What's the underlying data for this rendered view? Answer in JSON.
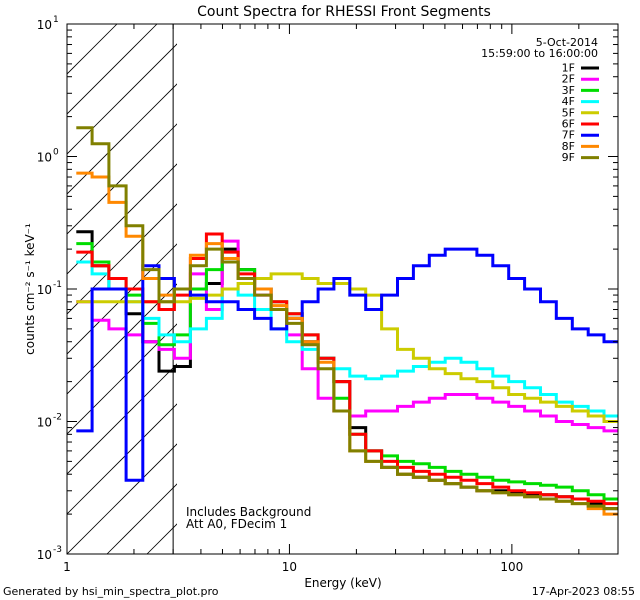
{
  "chart_data": {
    "type": "line",
    "title": "Count Spectra for RHESSI Front Segments",
    "xlabel": "Energy (keV)",
    "ylabel": "counts cm⁻² s⁻¹ keV⁻¹",
    "x_scale": "log",
    "y_scale": "log",
    "xlim": [
      1,
      300
    ],
    "ylim": [
      0.001,
      10
    ],
    "x_tick_labels": [
      {
        "value": 1,
        "label": "1"
      },
      {
        "value": 10,
        "label": "10"
      },
      {
        "value": 100,
        "label": "100"
      }
    ],
    "y_tick_labels": [
      {
        "value": 0.001,
        "mant": "10",
        "exp": "-3"
      },
      {
        "value": 0.01,
        "mant": "10",
        "exp": "-2"
      },
      {
        "value": 0.1,
        "mant": "10",
        "exp": "-1"
      },
      {
        "value": 1,
        "mant": "10",
        "exp": "0"
      },
      {
        "value": 10,
        "mant": "10",
        "exp": "1"
      }
    ],
    "legend_position": "top-right",
    "legend_header": [
      "5-Oct-2014",
      "15:59:00 to 16:00:00"
    ],
    "annotations": [
      "Includes Background",
      "Att A0, FDecim 1"
    ],
    "excluded_region_xmax": 3,
    "series": [
      {
        "name": "1F",
        "color": "#000000",
        "x": [
          1.2,
          1.4,
          1.7,
          2.0,
          2.4,
          2.8,
          3.3,
          3.9,
          4.6,
          5.4,
          6.4,
          7.6,
          9.0,
          10.5,
          12.4,
          14.6,
          17.2,
          20.3,
          23.9,
          28.2,
          33.2,
          39.2,
          46.2,
          54.4,
          64.1,
          75.6,
          89.1,
          105,
          124,
          146,
          172,
          203,
          239,
          282
        ],
        "y": [
          0.27,
          0.15,
          0.1,
          0.065,
          0.04,
          0.024,
          0.026,
          0.1,
          0.11,
          0.2,
          0.14,
          0.1,
          0.07,
          0.06,
          0.04,
          0.03,
          0.02,
          0.009,
          0.006,
          0.0045,
          0.004,
          0.0038,
          0.0036,
          0.0034,
          0.0032,
          0.003,
          0.003,
          0.0029,
          0.0028,
          0.0028,
          0.0027,
          0.0026,
          0.0024,
          0.0022
        ]
      },
      {
        "name": "2F",
        "color": "#ff00ff",
        "x": [
          1.2,
          1.4,
          1.7,
          2.0,
          2.4,
          2.8,
          3.3,
          3.9,
          4.6,
          5.4,
          6.4,
          7.6,
          9.0,
          10.5,
          12.4,
          14.6,
          17.2,
          20.3,
          23.9,
          28.2,
          33.2,
          39.2,
          46.2,
          54.4,
          64.1,
          75.6,
          89.1,
          105,
          124,
          146,
          172,
          203,
          239,
          282
        ],
        "y": [
          0.08,
          0.058,
          0.05,
          0.045,
          0.04,
          0.035,
          0.03,
          0.13,
          0.07,
          0.23,
          0.12,
          0.09,
          0.07,
          0.045,
          0.025,
          0.015,
          0.012,
          0.011,
          0.012,
          0.012,
          0.013,
          0.014,
          0.015,
          0.016,
          0.016,
          0.015,
          0.014,
          0.013,
          0.012,
          0.011,
          0.01,
          0.0095,
          0.009,
          0.0085
        ]
      },
      {
        "name": "3F",
        "color": "#00dd00",
        "x": [
          1.2,
          1.4,
          1.7,
          2.0,
          2.4,
          2.8,
          3.3,
          3.9,
          4.6,
          5.4,
          6.4,
          7.6,
          9.0,
          10.5,
          12.4,
          14.6,
          17.2,
          20.3,
          23.9,
          28.2,
          33.2,
          39.2,
          46.2,
          54.4,
          64.1,
          75.6,
          89.1,
          105,
          124,
          146,
          172,
          203,
          239,
          282
        ],
        "y": [
          0.22,
          0.16,
          0.12,
          0.09,
          0.055,
          0.038,
          0.045,
          0.1,
          0.14,
          0.16,
          0.14,
          0.1,
          0.08,
          0.065,
          0.045,
          0.03,
          0.015,
          0.008,
          0.006,
          0.0055,
          0.005,
          0.0048,
          0.0045,
          0.0042,
          0.004,
          0.0038,
          0.0036,
          0.0035,
          0.0034,
          0.0033,
          0.0032,
          0.003,
          0.0028,
          0.0026
        ]
      },
      {
        "name": "4F",
        "color": "#00ffff",
        "x": [
          1.2,
          1.4,
          1.7,
          2.0,
          2.4,
          2.8,
          3.3,
          3.9,
          4.6,
          5.4,
          6.4,
          7.6,
          9.0,
          10.5,
          12.4,
          14.6,
          17.2,
          20.3,
          23.9,
          28.2,
          33.2,
          39.2,
          46.2,
          54.4,
          64.1,
          75.6,
          89.1,
          105,
          124,
          146,
          172,
          203,
          239,
          282
        ],
        "y": [
          0.16,
          0.13,
          0.1,
          0.08,
          0.06,
          0.045,
          0.04,
          0.05,
          0.06,
          0.1,
          0.09,
          0.07,
          0.05,
          0.04,
          0.035,
          0.03,
          0.025,
          0.022,
          0.021,
          0.022,
          0.024,
          0.026,
          0.028,
          0.03,
          0.028,
          0.025,
          0.022,
          0.02,
          0.018,
          0.016,
          0.014,
          0.013,
          0.012,
          0.011
        ]
      },
      {
        "name": "5F",
        "color": "#cccc00",
        "x": [
          1.2,
          1.4,
          1.7,
          2.0,
          2.4,
          2.8,
          3.3,
          3.9,
          4.6,
          5.4,
          6.4,
          7.6,
          9.0,
          10.5,
          12.4,
          14.6,
          17.2,
          20.3,
          23.9,
          28.2,
          33.2,
          39.2,
          46.2,
          54.4,
          64.1,
          75.6,
          89.1,
          105,
          124,
          146,
          172,
          203,
          239,
          282
        ],
        "y": [
          0.08,
          0.08,
          0.08,
          0.08,
          0.08,
          0.08,
          0.08,
          0.085,
          0.09,
          0.1,
          0.11,
          0.12,
          0.13,
          0.13,
          0.12,
          0.11,
          0.11,
          0.1,
          0.09,
          0.05,
          0.035,
          0.03,
          0.025,
          0.023,
          0.021,
          0.02,
          0.018,
          0.016,
          0.015,
          0.014,
          0.013,
          0.012,
          0.011,
          0.01
        ]
      },
      {
        "name": "6F",
        "color": "#ff0000",
        "x": [
          1.2,
          1.4,
          1.7,
          2.0,
          2.4,
          2.8,
          3.3,
          3.9,
          4.6,
          5.4,
          6.4,
          7.6,
          9.0,
          10.5,
          12.4,
          14.6,
          17.2,
          20.3,
          23.9,
          28.2,
          33.2,
          39.2,
          46.2,
          54.4,
          64.1,
          75.6,
          89.1,
          105,
          124,
          146,
          172,
          203,
          239,
          282
        ],
        "y": [
          0.19,
          0.15,
          0.12,
          0.1,
          0.08,
          0.07,
          0.09,
          0.17,
          0.26,
          0.19,
          0.13,
          0.1,
          0.08,
          0.065,
          0.045,
          0.03,
          0.02,
          0.008,
          0.006,
          0.005,
          0.0045,
          0.0042,
          0.004,
          0.0038,
          0.0036,
          0.0034,
          0.0032,
          0.003,
          0.0029,
          0.0028,
          0.0027,
          0.0026,
          0.0025,
          0.0024
        ]
      },
      {
        "name": "7F",
        "color": "#0000ff",
        "x": [
          1.2,
          1.4,
          1.7,
          2.0,
          2.4,
          2.8,
          3.3,
          3.9,
          4.6,
          5.4,
          6.4,
          7.6,
          9.0,
          10.5,
          12.4,
          14.6,
          17.2,
          20.3,
          23.9,
          28.2,
          33.2,
          39.2,
          46.2,
          54.4,
          64.1,
          75.6,
          89.1,
          105,
          124,
          146,
          172,
          203,
          239,
          282
        ],
        "y": [
          0.0085,
          0.1,
          0.1,
          0.0036,
          0.15,
          0.12,
          0.1,
          0.09,
          0.08,
          0.08,
          0.07,
          0.06,
          0.05,
          0.06,
          0.08,
          0.1,
          0.12,
          0.09,
          0.07,
          0.09,
          0.12,
          0.15,
          0.18,
          0.2,
          0.2,
          0.18,
          0.15,
          0.12,
          0.1,
          0.08,
          0.06,
          0.05,
          0.045,
          0.04
        ]
      },
      {
        "name": "8F",
        "color": "#ff8800",
        "x": [
          1.2,
          1.4,
          1.7,
          2.0,
          2.4,
          2.8,
          3.3,
          3.9,
          4.6,
          5.4,
          6.4,
          7.6,
          9.0,
          10.5,
          12.4,
          14.6,
          17.2,
          20.3,
          23.9,
          28.2,
          33.2,
          39.2,
          46.2,
          54.4,
          64.1,
          75.6,
          89.1,
          105,
          124,
          146,
          172,
          203,
          239,
          282
        ],
        "y": [
          0.75,
          0.7,
          0.45,
          0.25,
          0.12,
          0.09,
          0.1,
          0.18,
          0.22,
          0.17,
          0.12,
          0.1,
          0.075,
          0.06,
          0.04,
          0.028,
          0.012,
          0.006,
          0.005,
          0.0045,
          0.004,
          0.0038,
          0.0036,
          0.0034,
          0.0032,
          0.003,
          0.0029,
          0.0028,
          0.0027,
          0.0026,
          0.0025,
          0.0024,
          0.0022,
          0.002
        ]
      },
      {
        "name": "9F",
        "color": "#808000",
        "x": [
          1.2,
          1.4,
          1.7,
          2.0,
          2.4,
          2.8,
          3.3,
          3.9,
          4.6,
          5.4,
          6.4,
          7.6,
          9.0,
          10.5,
          12.4,
          14.6,
          17.2,
          20.3,
          23.9,
          28.2,
          33.2,
          39.2,
          46.2,
          54.4,
          64.1,
          75.6,
          89.1,
          105,
          124,
          146,
          172,
          203,
          239,
          282
        ],
        "y": [
          1.65,
          1.25,
          0.6,
          0.3,
          0.14,
          0.08,
          0.1,
          0.15,
          0.2,
          0.16,
          0.12,
          0.09,
          0.07,
          0.055,
          0.038,
          0.025,
          0.012,
          0.006,
          0.005,
          0.0045,
          0.004,
          0.0038,
          0.0036,
          0.0034,
          0.0032,
          0.003,
          0.0029,
          0.0028,
          0.0027,
          0.0026,
          0.0025,
          0.0024,
          0.0023,
          0.0022
        ]
      }
    ]
  },
  "footer": {
    "generated_by": "Generated by hsi_min_spectra_plot.pro",
    "timestamp": "17-Apr-2023 08:55"
  }
}
